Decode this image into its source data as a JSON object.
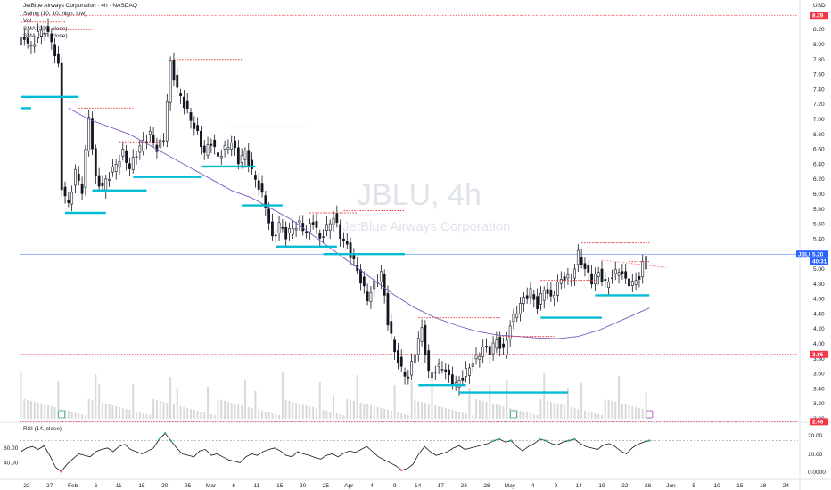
{
  "legend": {
    "symbol_line": "JetBlue Airways Corporation · 4h · NASDAQ",
    "indicators": [
      "Swing (10, 10, high, low)",
      "Vol",
      "SMA (200, close)",
      "SMA (100, close)"
    ]
  },
  "watermark": {
    "symbol": "JBLU, 4h",
    "name": "JetBlue Airways Corporation"
  },
  "currency": "USD",
  "colors": {
    "candle": "#131722",
    "swing_high": "#e53935",
    "swing_low": "#00bcd4",
    "sma": "#7e57c2",
    "volume": "#d9d9d9",
    "last_price_line": "#00bcd4",
    "price_badge_blue": "#2962ff",
    "price_badge_red": "#f23645"
  },
  "chart_data": [
    {
      "type": "candlestick",
      "title": "JetBlue Airways Corporation · 4h · NASDAQ",
      "ylim": [
        3.0,
        8.5
      ],
      "price_ticks": [
        "8.20",
        "8.00",
        "7.80",
        "7.60",
        "7.40",
        "7.20",
        "7.00",
        "6.80",
        "6.60",
        "6.40",
        "6.20",
        "6.00",
        "5.80",
        "5.60",
        "5.40",
        "5.20",
        "5.00",
        "4.80",
        "4.60",
        "4.40",
        "4.20",
        "4.00",
        "3.80",
        "3.60",
        "3.40",
        "3.20",
        "3.00"
      ],
      "x_ticks": [
        "22",
        "27",
        "Feb",
        "6",
        "11",
        "15",
        "20",
        "25",
        "Mar",
        "6",
        "11",
        "15",
        "20",
        "25",
        "Apr",
        "4",
        "9",
        "14",
        "17",
        "23",
        "28",
        "May",
        "4",
        "9",
        "14",
        "19",
        "22",
        "28",
        "Jun",
        "5",
        "10",
        "15",
        "18",
        "24"
      ],
      "x_tick_positions": [
        0,
        1,
        2,
        3,
        4,
        5,
        6,
        7,
        8,
        9,
        10,
        11,
        12,
        13,
        14,
        15,
        16,
        17,
        18,
        19,
        20,
        21,
        22,
        23,
        24,
        25,
        26,
        27,
        28,
        29,
        30,
        31,
        32,
        33
      ],
      "price_badges": [
        {
          "label": "8.39",
          "value": 8.39,
          "color": "#f23645"
        },
        {
          "label": "JBLU",
          "value": 5.2,
          "color": "#2962ff"
        },
        {
          "label": "5.20",
          "value": 5.2,
          "color": "#2962ff"
        },
        {
          "label": "40:31",
          "value": 5.2,
          "color": "#2962ff"
        },
        {
          "label": "3.86",
          "value": 3.86,
          "color": "#f23645"
        },
        {
          "label": "2.96",
          "value": 2.96,
          "color": "#f23645"
        }
      ],
      "key_levels": [
        {
          "value": 8.39,
          "color": "#f23645",
          "style": "dotted"
        },
        {
          "value": 3.86,
          "color": "#f23645",
          "style": "dotted"
        },
        {
          "value": 2.96,
          "color": "#f23645",
          "style": "dotted"
        },
        {
          "value": 5.2,
          "color": "#2962ff",
          "style": "solid-thin"
        }
      ],
      "close_path": [
        [
          0,
          8.0
        ],
        [
          2,
          8.1
        ],
        [
          4,
          7.95
        ],
        [
          6,
          8.15
        ],
        [
          8,
          8.2
        ],
        [
          10,
          8.05
        ],
        [
          12,
          7.7
        ],
        [
          13,
          6.1
        ],
        [
          15,
          5.85
        ],
        [
          17,
          6.3
        ],
        [
          19,
          6.05
        ],
        [
          21,
          7.05
        ],
        [
          23,
          6.2
        ],
        [
          25,
          6.1
        ],
        [
          27,
          6.25
        ],
        [
          29,
          6.4
        ],
        [
          31,
          6.55
        ],
        [
          33,
          6.35
        ],
        [
          35,
          6.55
        ],
        [
          37,
          6.7
        ],
        [
          39,
          6.8
        ],
        [
          41,
          6.6
        ],
        [
          43,
          6.75
        ],
        [
          45,
          7.75
        ],
        [
          47,
          7.4
        ],
        [
          49,
          7.2
        ],
        [
          51,
          7.0
        ],
        [
          53,
          6.8
        ],
        [
          55,
          6.55
        ],
        [
          57,
          6.7
        ],
        [
          59,
          6.5
        ],
        [
          61,
          6.6
        ],
        [
          63,
          6.7
        ],
        [
          65,
          6.45
        ],
        [
          67,
          6.55
        ],
        [
          69,
          6.3
        ],
        [
          71,
          6.1
        ],
        [
          73,
          5.85
        ],
        [
          75,
          5.4
        ],
        [
          77,
          5.6
        ],
        [
          79,
          5.45
        ],
        [
          81,
          5.55
        ],
        [
          83,
          5.6
        ],
        [
          85,
          5.5
        ],
        [
          87,
          5.65
        ],
        [
          89,
          5.4
        ],
        [
          91,
          5.55
        ],
        [
          93,
          5.7
        ],
        [
          95,
          5.45
        ],
        [
          97,
          5.3
        ],
        [
          99,
          5.1
        ],
        [
          101,
          4.85
        ],
        [
          103,
          4.6
        ],
        [
          105,
          4.8
        ],
        [
          107,
          4.95
        ],
        [
          109,
          4.3
        ],
        [
          111,
          3.9
        ],
        [
          113,
          3.65
        ],
        [
          115,
          3.55
        ],
        [
          117,
          3.9
        ],
        [
          119,
          4.2
        ],
        [
          121,
          3.6
        ],
        [
          123,
          3.65
        ],
        [
          125,
          3.7
        ],
        [
          127,
          3.55
        ],
        [
          129,
          3.45
        ],
        [
          131,
          3.55
        ],
        [
          133,
          3.7
        ],
        [
          135,
          3.8
        ],
        [
          137,
          3.95
        ],
        [
          139,
          3.9
        ],
        [
          141,
          4.05
        ],
        [
          143,
          3.9
        ],
        [
          145,
          4.25
        ],
        [
          147,
          4.45
        ],
        [
          149,
          4.6
        ],
        [
          151,
          4.7
        ],
        [
          153,
          4.5
        ],
        [
          155,
          4.75
        ],
        [
          157,
          4.6
        ],
        [
          159,
          4.8
        ],
        [
          161,
          4.9
        ],
        [
          163,
          4.85
        ],
        [
          165,
          5.2
        ],
        [
          167,
          5.0
        ],
        [
          169,
          4.85
        ],
        [
          171,
          4.95
        ],
        [
          173,
          4.8
        ],
        [
          175,
          4.9
        ],
        [
          177,
          5.0
        ],
        [
          179,
          4.85
        ],
        [
          181,
          4.8
        ],
        [
          183,
          4.9
        ],
        [
          185,
          5.2
        ]
      ],
      "swing_highs": [
        {
          "from": 0,
          "to": 13,
          "value": 8.3
        },
        {
          "from": 9,
          "to": 21,
          "value": 8.2
        },
        {
          "from": 17,
          "to": 33,
          "value": 7.15
        },
        {
          "from": 29,
          "to": 41,
          "value": 6.7
        },
        {
          "from": 45,
          "to": 65,
          "value": 7.8
        },
        {
          "from": 61,
          "to": 85,
          "value": 6.9
        },
        {
          "from": 85,
          "to": 99,
          "value": 5.75
        },
        {
          "from": 95,
          "to": 113,
          "value": 5.78
        },
        {
          "from": 117,
          "to": 141,
          "value": 4.35
        },
        {
          "from": 141,
          "to": 157,
          "value": 4.1
        },
        {
          "from": 153,
          "to": 169,
          "value": 4.85
        },
        {
          "from": 165,
          "to": 185,
          "value": 5.35
        },
        {
          "from": 179,
          "to": 185,
          "value": 5.1
        }
      ],
      "swing_lows": [
        {
          "from": 0,
          "to": 17,
          "value": 7.3
        },
        {
          "from": 0,
          "to": 3,
          "value": 7.15
        },
        {
          "from": 13,
          "to": 25,
          "value": 5.75
        },
        {
          "from": 21,
          "to": 37,
          "value": 6.05
        },
        {
          "from": 33,
          "to": 53,
          "value": 6.23
        },
        {
          "from": 53,
          "to": 69,
          "value": 6.37
        },
        {
          "from": 65,
          "to": 77,
          "value": 5.85
        },
        {
          "from": 75,
          "to": 93,
          "value": 5.3
        },
        {
          "from": 89,
          "to": 113,
          "value": 5.2
        },
        {
          "from": 117,
          "to": 131,
          "value": 3.45
        },
        {
          "from": 129,
          "to": 161,
          "value": 3.35
        },
        {
          "from": 153,
          "to": 171,
          "value": 4.35
        },
        {
          "from": 169,
          "to": 185,
          "value": 4.65
        }
      ],
      "sma_points": [
        [
          14,
          7.15
        ],
        [
          20,
          7.0
        ],
        [
          26,
          6.9
        ],
        [
          32,
          6.8
        ],
        [
          38,
          6.65
        ],
        [
          44,
          6.5
        ],
        [
          50,
          6.35
        ],
        [
          56,
          6.2
        ],
        [
          62,
          6.05
        ],
        [
          68,
          5.95
        ],
        [
          74,
          5.8
        ],
        [
          80,
          5.65
        ],
        [
          86,
          5.45
        ],
        [
          92,
          5.25
        ],
        [
          98,
          5.05
        ],
        [
          104,
          4.85
        ],
        [
          110,
          4.65
        ],
        [
          116,
          4.48
        ],
        [
          122,
          4.35
        ],
        [
          128,
          4.25
        ],
        [
          134,
          4.17
        ],
        [
          140,
          4.12
        ],
        [
          146,
          4.1
        ],
        [
          152,
          4.08
        ],
        [
          158,
          4.07
        ],
        [
          164,
          4.1
        ],
        [
          170,
          4.18
        ],
        [
          176,
          4.3
        ],
        [
          182,
          4.42
        ],
        [
          185,
          4.48
        ]
      ],
      "forecast_line": [
        [
          171,
          5.12
        ],
        [
          190,
          5.02
        ]
      ]
    },
    {
      "type": "line",
      "title": "RSI (14, close)",
      "ylim": [
        20,
        90
      ],
      "y_ticks": [
        "60.00",
        "40.00"
      ],
      "right_ticks": [
        "20.00",
        "10.00",
        "0.0000"
      ],
      "bands": [
        70,
        30
      ],
      "x_tick_positions": [
        0,
        1,
        2,
        3,
        4,
        5,
        6,
        7,
        8,
        9,
        10,
        11,
        12,
        13,
        14,
        15,
        16,
        17,
        18,
        19,
        20,
        21,
        22,
        23,
        24,
        25,
        26,
        27,
        28,
        29,
        30,
        31,
        32,
        33
      ],
      "values": [
        55,
        60,
        62,
        58,
        63,
        50,
        34,
        28,
        38,
        45,
        52,
        50,
        48,
        55,
        58,
        60,
        55,
        62,
        65,
        58,
        55,
        52,
        56,
        60,
        72,
        80,
        70,
        60,
        52,
        50,
        48,
        56,
        58,
        50,
        52,
        48,
        44,
        42,
        40,
        48,
        52,
        50,
        55,
        58,
        60,
        56,
        50,
        48,
        55,
        52,
        50,
        47,
        45,
        50,
        52,
        48,
        53,
        56,
        54,
        58,
        62,
        55,
        48,
        44,
        40,
        36,
        30,
        32,
        38,
        52,
        62,
        55,
        50,
        52,
        55,
        60,
        63,
        58,
        60,
        62,
        64,
        66,
        70,
        72,
        68,
        70,
        62,
        56,
        62,
        66,
        72,
        70,
        66,
        64,
        68,
        70,
        72,
        66,
        62,
        60,
        58,
        64,
        66,
        62,
        56,
        52,
        60,
        65,
        68,
        70
      ]
    }
  ]
}
